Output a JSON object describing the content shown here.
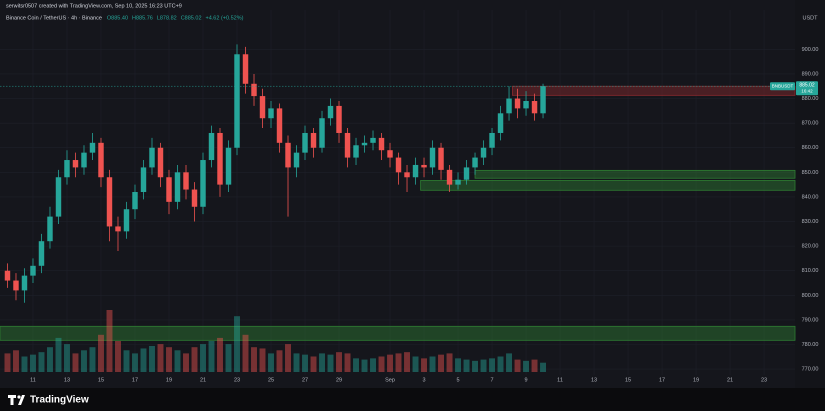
{
  "chart_data": {
    "type": "candlestick",
    "header": "serwitsr0507 created with TradingView.com, Sep 10, 2025 16:23 UTC+9",
    "title": "Binance Coin / TetherUS · 4h · Binance",
    "legend_values": [
      "O885.40",
      "H885.76",
      "L878.82",
      "C885.02",
      "+4.62 (+0.52%)"
    ],
    "currency": "USDT",
    "footer": "TradingView",
    "up_color": "#26a69a",
    "down_color": "#ef5350",
    "x": [
      -0.5,
      0,
      0.5,
      1,
      1.5,
      2,
      2.5,
      3,
      3.5,
      4,
      4.5,
      5,
      5.5,
      6,
      6.5,
      7,
      7.5,
      8,
      8.5,
      9,
      9.5,
      10,
      10.5,
      11,
      11.5,
      12,
      12.5,
      13,
      13.5,
      14,
      14.5,
      15,
      15.5,
      16,
      16.5,
      17,
      17.5,
      18,
      18.5,
      19,
      19.5,
      20,
      20.5,
      21,
      21.5,
      22,
      22.5,
      23,
      23.5,
      24,
      24.5,
      25,
      25.5,
      26,
      26.5,
      27,
      27.5,
      28,
      28.5,
      29,
      29.5,
      30,
      30.5,
      31
    ],
    "open": [
      810,
      806,
      802,
      808,
      812,
      822,
      832,
      848,
      855,
      852,
      858,
      862,
      848,
      828,
      826,
      835,
      842,
      852,
      860,
      848,
      838,
      850,
      843,
      836,
      855,
      866,
      845,
      860,
      898,
      886,
      881,
      872,
      876,
      862,
      852,
      858,
      866,
      860,
      872,
      877,
      866,
      856,
      861,
      862,
      864,
      859,
      856,
      850,
      848,
      853,
      852,
      860,
      851,
      845,
      847,
      852,
      856,
      860,
      866,
      874,
      880,
      876,
      879,
      874
    ],
    "high": [
      813,
      809,
      811,
      815,
      825,
      836,
      851,
      859,
      858,
      861,
      866,
      864,
      851,
      832,
      838,
      845,
      855,
      864,
      862,
      851,
      853,
      853,
      846,
      858,
      869,
      868,
      863,
      902,
      901,
      890,
      884,
      879,
      878,
      865,
      861,
      869,
      868,
      875,
      880,
      879,
      868,
      864,
      865,
      867,
      866,
      862,
      858,
      853,
      856,
      856,
      863,
      862,
      853,
      850,
      855,
      858,
      863,
      868,
      877,
      885,
      884,
      883,
      882,
      886
    ],
    "low": [
      803,
      798,
      797,
      805,
      809,
      819,
      829,
      845,
      848,
      849,
      855,
      844,
      822,
      818,
      823,
      831,
      839,
      849,
      844,
      833,
      835,
      839,
      830,
      833,
      852,
      840,
      842,
      857,
      882,
      877,
      868,
      868,
      858,
      832,
      848,
      855,
      856,
      858,
      869,
      862,
      852,
      853,
      858,
      859,
      855,
      852,
      845,
      842,
      845,
      848,
      849,
      847,
      842,
      843,
      845,
      849,
      853,
      857,
      863,
      871,
      872,
      873,
      871,
      872
    ],
    "close": [
      806,
      802,
      808,
      812,
      822,
      832,
      848,
      855,
      852,
      858,
      862,
      848,
      828,
      826,
      835,
      842,
      852,
      860,
      848,
      838,
      850,
      843,
      836,
      855,
      866,
      845,
      860,
      898,
      886,
      881,
      872,
      876,
      862,
      852,
      858,
      866,
      860,
      872,
      877,
      866,
      856,
      861,
      862,
      864,
      859,
      856,
      850,
      848,
      853,
      852,
      860,
      851,
      845,
      847,
      852,
      856,
      860,
      866,
      874,
      880,
      876,
      879,
      874,
      885
    ],
    "volume": [
      30,
      35,
      25,
      28,
      32,
      40,
      55,
      45,
      30,
      35,
      40,
      60,
      100,
      50,
      35,
      30,
      38,
      42,
      45,
      40,
      35,
      30,
      40,
      45,
      50,
      55,
      45,
      90,
      60,
      40,
      38,
      30,
      35,
      45,
      30,
      28,
      25,
      30,
      28,
      32,
      30,
      22,
      20,
      22,
      25,
      28,
      30,
      32,
      25,
      22,
      25,
      28,
      30,
      22,
      20,
      18,
      20,
      22,
      25,
      30,
      20,
      18,
      20,
      15
    ],
    "zones": [
      {
        "from": 881.3,
        "to": 885,
        "x_start": 29.2,
        "color": "#8b2a2e"
      },
      {
        "from": 847.6,
        "to": 850.8,
        "x_start": 27,
        "color": "#2e7d32"
      },
      {
        "from": 842.7,
        "to": 846.7,
        "x_start": 23.8,
        "color": "#2e7d32"
      },
      {
        "from": 781.7,
        "to": 787.4,
        "x_start": -0.94,
        "color": "#2e7d32"
      }
    ],
    "symbol_label": "BNBUSDT",
    "last_price": 885.02,
    "countdown": "16:42",
    "xlim": [
      -0.94,
      45.82
    ],
    "ylim": [
      767.6,
      916
    ],
    "xticks": [
      {
        "value": 1,
        "label": "11"
      },
      {
        "value": 3,
        "label": "13"
      },
      {
        "value": 5,
        "label": "15"
      },
      {
        "value": 7,
        "label": "17"
      },
      {
        "value": 9,
        "label": "19"
      },
      {
        "value": 11,
        "label": "21"
      },
      {
        "value": 13,
        "label": "23"
      },
      {
        "value": 15,
        "label": "25"
      },
      {
        "value": 17,
        "label": "27"
      },
      {
        "value": 19,
        "label": "29"
      },
      {
        "value": 22,
        "label": "Sep"
      },
      {
        "value": 24,
        "label": "3"
      },
      {
        "value": 26,
        "label": "5"
      },
      {
        "value": 28,
        "label": "7"
      },
      {
        "value": 30,
        "label": "9"
      },
      {
        "value": 32,
        "label": "11"
      },
      {
        "value": 34,
        "label": "13"
      },
      {
        "value": 36,
        "label": "15"
      },
      {
        "value": 38,
        "label": "17"
      },
      {
        "value": 40,
        "label": "19"
      },
      {
        "value": 42,
        "label": "21"
      },
      {
        "value": 44,
        "label": "23"
      }
    ],
    "yticks": [
      {
        "value": 770,
        "label": "770.00"
      },
      {
        "value": 780,
        "label": "780.00"
      },
      {
        "value": 790,
        "label": "790.00"
      },
      {
        "value": 800,
        "label": "800.00"
      },
      {
        "value": 810,
        "label": "810.00"
      },
      {
        "value": 820,
        "label": "820.00"
      },
      {
        "value": 830,
        "label": "830.00"
      },
      {
        "value": 840,
        "label": "840.00"
      },
      {
        "value": 850,
        "label": "850.00"
      },
      {
        "value": 860,
        "label": "860.00"
      },
      {
        "value": 870,
        "label": "870.00"
      },
      {
        "value": 880,
        "label": "880.00"
      },
      {
        "value": 890,
        "label": "890.00"
      },
      {
        "value": 900,
        "label": "900.00"
      }
    ]
  }
}
